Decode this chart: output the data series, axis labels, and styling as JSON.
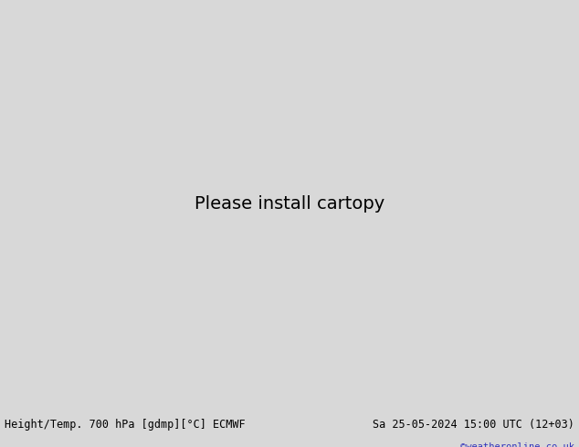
{
  "title_left": "Height/Temp. 700 hPa [gdmp][°C] ECMWF",
  "title_right": "Sa 25-05-2024 15:00 UTC (12+03)",
  "watermark": "©weatheronline.co.uk",
  "bg_color": "#d8d8d8",
  "ocean_color": "#d8d8d8",
  "land_color": "#aae8aa",
  "border_color": "#888888",
  "bottom_bar_color": "#ffffff",
  "watermark_color": "#3333bb",
  "figsize": [
    6.34,
    4.9
  ],
  "dpi": 100,
  "extent": [
    105,
    185,
    -60,
    5
  ]
}
